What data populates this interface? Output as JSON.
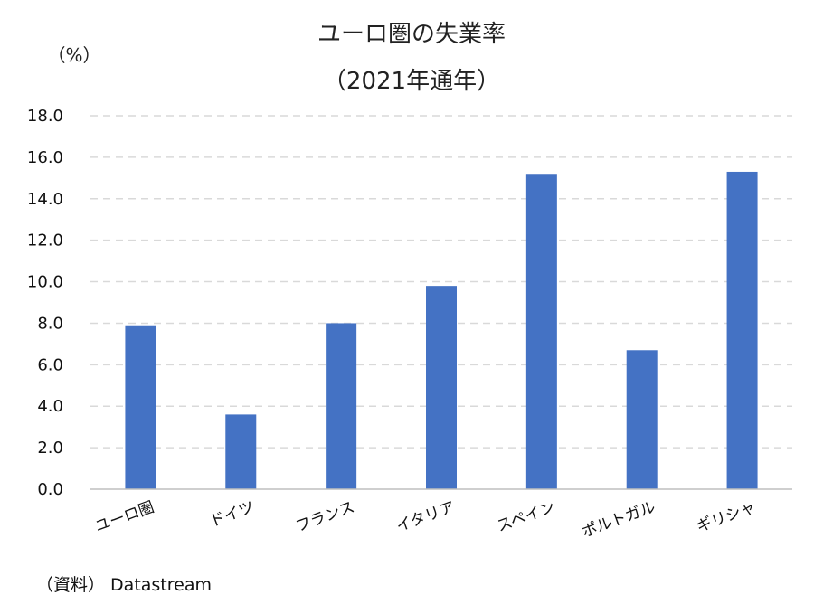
{
  "chart_data": {
    "type": "bar",
    "title": "ユーロ圏の失業率",
    "subtitle": "（2021年通年）",
    "ylabel": "（%）",
    "categories": [
      "ユーロ圏",
      "ドイツ",
      "フランス",
      "イタリア",
      "スペイン",
      "ポルトガル",
      "ギリシャ"
    ],
    "values": [
      7.9,
      3.6,
      8.0,
      9.8,
      15.2,
      6.7,
      15.3
    ],
    "ylim": [
      0,
      18
    ],
    "yticks": [
      "0.0",
      "2.0",
      "4.0",
      "6.0",
      "8.0",
      "10.0",
      "12.0",
      "14.0",
      "16.0",
      "18.0"
    ],
    "bar_color": "#4472C4",
    "gridline_color": "#D9D9D9",
    "grid": "horizontal dashed",
    "source": "（資料） Datastream"
  }
}
